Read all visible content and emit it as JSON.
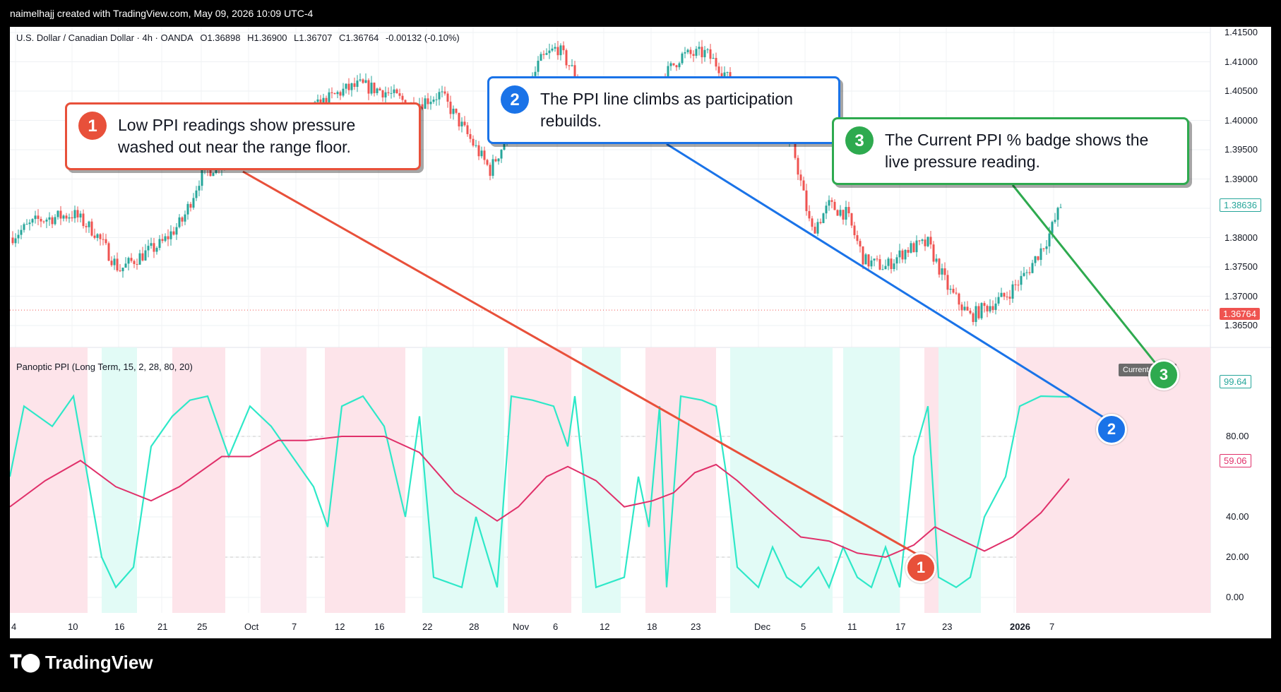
{
  "header": {
    "attribution": "naimelhajj created with TradingView.com, May 09, 2026 10:09 UTC-4"
  },
  "symbol": {
    "name": "U.S. Dollar / Canadian Dollar · 4h · OANDA",
    "open": "O1.36898",
    "high": "H1.36900",
    "low": "L1.36707",
    "close": "C1.36764",
    "change": "-0.00132 (-0.10%)"
  },
  "indicator": {
    "label": "Panoptic PPI (Long Term, 15, 2, 28, 80, 20)",
    "badge": "Current PPI %"
  },
  "price_axis": [
    "1.41500",
    "1.41000",
    "1.40500",
    "1.40000",
    "1.39500",
    "1.39000",
    "1.38500",
    "1.38000",
    "1.37500",
    "1.37000",
    "1.36500"
  ],
  "price_tags": {
    "last": "1.38636",
    "current": "1.36764"
  },
  "ppi_axis": [
    "80.00",
    "40.00",
    "20.00",
    "0.00"
  ],
  "ppi_tags": {
    "ppi": "99.64",
    "avg": "59.06"
  },
  "time_axis": [
    "4",
    "10",
    "16",
    "21",
    "25",
    "Oct",
    "7",
    "12",
    "16",
    "22",
    "28",
    "Nov",
    "6",
    "12",
    "18",
    "23",
    "Dec",
    "5",
    "11",
    "17",
    "23",
    "2026",
    "7"
  ],
  "callouts": [
    {
      "num": "1",
      "text": "Low PPI readings show pressure washed out near the range floor.",
      "color": "#e8503a"
    },
    {
      "num": "2",
      "text": "The PPI line climbs as participation rebuilds.",
      "color": "#1a73e8"
    },
    {
      "num": "3",
      "text": "The Current PPI % badge shows the live pressure reading.",
      "color": "#2eaa4f"
    }
  ],
  "branding": {
    "logo_text": "TradingView"
  },
  "colors": {
    "up": "#26a69a",
    "down": "#ef5350",
    "ppi": "#2ee8c8",
    "avg": "#e0306a"
  }
}
